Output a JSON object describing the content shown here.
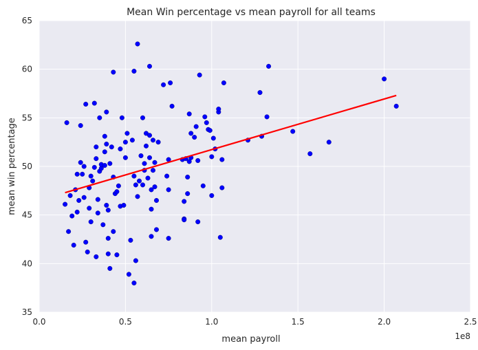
{
  "chart_data": {
    "type": "scatter",
    "title": "Mean Win percentage vs mean payroll for all teams",
    "xlabel": "mean payroll",
    "ylabel": "mean win percentage",
    "x_offset_label": "1e8",
    "xlim": [
      0,
      2.5
    ],
    "ylim": [
      35,
      65
    ],
    "x_ticks": [
      0.0,
      0.5,
      1.0,
      1.5,
      2.0,
      2.5
    ],
    "x_tick_labels": [
      "0.0",
      "0.5",
      "1.0",
      "1.5",
      "2.0",
      "2.5"
    ],
    "y_ticks": [
      35,
      40,
      45,
      50,
      55,
      60,
      65
    ],
    "y_tick_labels": [
      "35",
      "40",
      "45",
      "50",
      "55",
      "60",
      "65"
    ],
    "grid": true,
    "colors": {
      "plot_background": "#eaeaf2",
      "grid": "#ffffff",
      "points": "#0000ff",
      "point_edge": "#00006a",
      "trend_line": "#ff0000"
    },
    "series": [
      {
        "name": "teams",
        "kind": "scatter",
        "points": [
          [
            0.15,
            46.1
          ],
          [
            0.16,
            54.5
          ],
          [
            0.17,
            43.3
          ],
          [
            0.18,
            47.0
          ],
          [
            0.19,
            44.9
          ],
          [
            0.2,
            41.9
          ],
          [
            0.21,
            47.6
          ],
          [
            0.22,
            45.3
          ],
          [
            0.22,
            49.2
          ],
          [
            0.23,
            46.5
          ],
          [
            0.24,
            50.4
          ],
          [
            0.24,
            54.2
          ],
          [
            0.25,
            49.2
          ],
          [
            0.26,
            50.0
          ],
          [
            0.26,
            46.8
          ],
          [
            0.27,
            42.2
          ],
          [
            0.27,
            56.4
          ],
          [
            0.28,
            41.2
          ],
          [
            0.29,
            45.7
          ],
          [
            0.29,
            47.8
          ],
          [
            0.3,
            44.3
          ],
          [
            0.3,
            49.0
          ],
          [
            0.31,
            48.5
          ],
          [
            0.32,
            49.9
          ],
          [
            0.32,
            56.5
          ],
          [
            0.33,
            50.8
          ],
          [
            0.33,
            52.0
          ],
          [
            0.33,
            40.7
          ],
          [
            0.34,
            45.2
          ],
          [
            0.34,
            46.6
          ],
          [
            0.35,
            55.0
          ],
          [
            0.35,
            49.5
          ],
          [
            0.36,
            49.8
          ],
          [
            0.36,
            50.2
          ],
          [
            0.37,
            44.0
          ],
          [
            0.38,
            50.1
          ],
          [
            0.38,
            53.1
          ],
          [
            0.38,
            51.5
          ],
          [
            0.39,
            52.3
          ],
          [
            0.39,
            55.6
          ],
          [
            0.39,
            46.0
          ],
          [
            0.4,
            45.5
          ],
          [
            0.4,
            42.6
          ],
          [
            0.4,
            41.0
          ],
          [
            0.41,
            39.5
          ],
          [
            0.41,
            50.3
          ],
          [
            0.42,
            52.0
          ],
          [
            0.43,
            59.7
          ],
          [
            0.43,
            48.9
          ],
          [
            0.43,
            43.3
          ],
          [
            0.44,
            47.2
          ],
          [
            0.45,
            40.9
          ],
          [
            0.45,
            47.4
          ],
          [
            0.46,
            48.0
          ],
          [
            0.47,
            51.8
          ],
          [
            0.47,
            45.9
          ],
          [
            0.48,
            55.0
          ],
          [
            0.49,
            46.0
          ],
          [
            0.5,
            52.5
          ],
          [
            0.5,
            50.9
          ],
          [
            0.51,
            53.4
          ],
          [
            0.52,
            38.9
          ],
          [
            0.53,
            42.4
          ],
          [
            0.54,
            52.7
          ],
          [
            0.55,
            38.0
          ],
          [
            0.55,
            49.0
          ],
          [
            0.55,
            59.8
          ],
          [
            0.56,
            48.1
          ],
          [
            0.56,
            40.3
          ],
          [
            0.57,
            62.6
          ],
          [
            0.57,
            46.9
          ],
          [
            0.58,
            48.5
          ],
          [
            0.59,
            51.1
          ],
          [
            0.6,
            48.1
          ],
          [
            0.6,
            55.0
          ],
          [
            0.61,
            49.6
          ],
          [
            0.61,
            50.3
          ],
          [
            0.62,
            53.4
          ],
          [
            0.62,
            52.1
          ],
          [
            0.63,
            48.8
          ],
          [
            0.64,
            60.3
          ],
          [
            0.64,
            53.2
          ],
          [
            0.64,
            50.9
          ],
          [
            0.65,
            47.6
          ],
          [
            0.65,
            42.8
          ],
          [
            0.65,
            45.6
          ],
          [
            0.66,
            52.7
          ],
          [
            0.66,
            49.6
          ],
          [
            0.67,
            50.4
          ],
          [
            0.67,
            47.9
          ],
          [
            0.68,
            43.5
          ],
          [
            0.68,
            46.5
          ],
          [
            0.69,
            52.5
          ],
          [
            0.72,
            58.4
          ],
          [
            0.74,
            49.0
          ],
          [
            0.75,
            42.6
          ],
          [
            0.75,
            47.6
          ],
          [
            0.75,
            50.7
          ],
          [
            0.76,
            58.6
          ],
          [
            0.77,
            56.2
          ],
          [
            0.83,
            50.7
          ],
          [
            0.84,
            44.6
          ],
          [
            0.84,
            44.5
          ],
          [
            0.84,
            46.4
          ],
          [
            0.85,
            50.8
          ],
          [
            0.86,
            47.2
          ],
          [
            0.86,
            48.9
          ],
          [
            0.87,
            50.5
          ],
          [
            0.87,
            55.4
          ],
          [
            0.88,
            50.9
          ],
          [
            0.88,
            53.4
          ],
          [
            0.9,
            53.0
          ],
          [
            0.91,
            54.1
          ],
          [
            0.92,
            50.6
          ],
          [
            0.92,
            44.3
          ],
          [
            0.93,
            59.4
          ],
          [
            0.95,
            48.0
          ],
          [
            0.96,
            55.1
          ],
          [
            0.97,
            54.5
          ],
          [
            0.98,
            53.8
          ],
          [
            0.99,
            53.7
          ],
          [
            1.0,
            47.0
          ],
          [
            1.0,
            51.0
          ],
          [
            1.01,
            52.9
          ],
          [
            1.02,
            51.8
          ],
          [
            1.04,
            55.6
          ],
          [
            1.04,
            55.9
          ],
          [
            1.05,
            42.7
          ],
          [
            1.06,
            47.8
          ],
          [
            1.06,
            50.7
          ],
          [
            1.07,
            58.6
          ],
          [
            1.21,
            52.7
          ],
          [
            1.28,
            57.6
          ],
          [
            1.29,
            53.1
          ],
          [
            1.32,
            55.1
          ],
          [
            1.33,
            60.3
          ],
          [
            1.47,
            53.6
          ],
          [
            1.57,
            51.3
          ],
          [
            1.68,
            52.5
          ],
          [
            2.0,
            59.0
          ],
          [
            2.07,
            56.2
          ]
        ]
      },
      {
        "name": "linear fit",
        "kind": "line",
        "points": [
          [
            0.15,
            47.3
          ],
          [
            2.07,
            57.3
          ]
        ]
      }
    ]
  }
}
